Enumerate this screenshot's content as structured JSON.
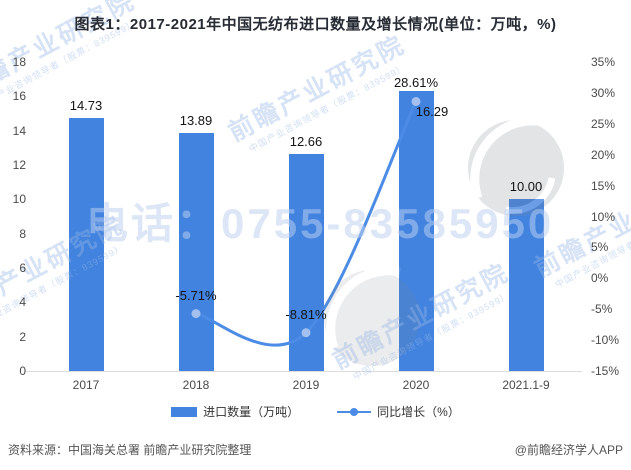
{
  "title": "图表1：2017-2021年中国无纺布进口数量及增长情况(单位：万吨，%)",
  "footer": {
    "source_note": "资料来源：中国海关总署 前瞻产业研究院整理",
    "credit": "@前瞻经济学人APP"
  },
  "watermark": {
    "brand": "前瞻产业研究院",
    "brand_sub": "中国产业咨询领导者（股票：839599）",
    "phone": "电话：0755-83585950"
  },
  "legend": [
    {
      "label": "进口数量（万吨）",
      "marker": "bar"
    },
    {
      "label": "同比增长（%）",
      "marker": "line-dot"
    }
  ],
  "colors": {
    "bar": "#4183df",
    "line": "#4c8ce6",
    "line_dot": "#a3c0ef"
  },
  "chart_data": {
    "type": "bar+line",
    "title": "图表1：2017-2021年中国无纺布进口数量及增长情况(单位：万吨，%)",
    "categories": [
      "2017",
      "2018",
      "2019",
      "2020",
      "2021.1-9"
    ],
    "series": [
      {
        "name": "进口数量（万吨）",
        "type": "bar",
        "color": "#4183df",
        "values": [
          14.73,
          13.89,
          12.66,
          16.29,
          10.0
        ],
        "labels": [
          "14.73",
          "13.89",
          "12.66",
          "16.29",
          "10.00"
        ],
        "label_offsets": {
          "3": [
            16,
            33
          ]
        }
      },
      {
        "name": "同比增长（%）",
        "type": "line",
        "color": "#4c8ce6",
        "dot_color": "#a3c0ef",
        "values": [
          null,
          -5.71,
          -8.81,
          28.61,
          null
        ],
        "labels": [
          null,
          "-5.71%",
          "-8.81%",
          "28.61%",
          null
        ]
      }
    ],
    "left_axis": {
      "min": 0,
      "max": 18,
      "ticks": [
        "0",
        "2",
        "4",
        "6",
        "8",
        "10",
        "12",
        "14",
        "16",
        "18"
      ]
    },
    "right_axis": {
      "min": -15,
      "max": 35,
      "ticks": [
        "-15%",
        "-10%",
        "-5%",
        "0%",
        "5%",
        "10%",
        "15%",
        "20%",
        "25%",
        "30%",
        "35%"
      ]
    },
    "grid": false,
    "legend_position": "bottom"
  }
}
